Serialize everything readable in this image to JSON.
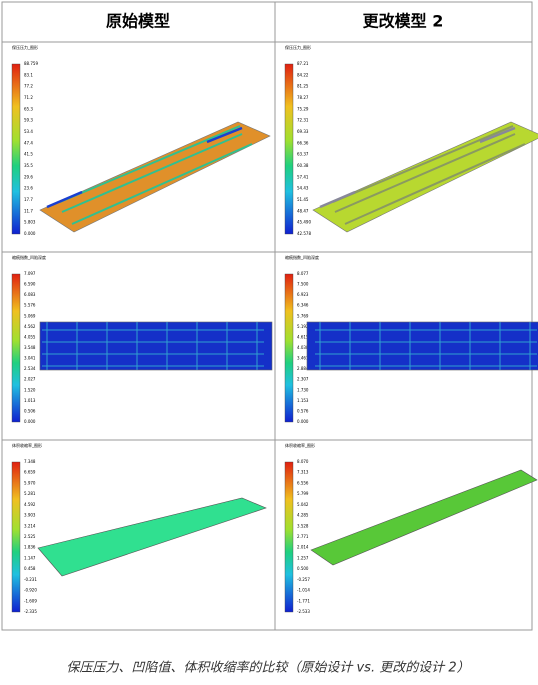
{
  "table": {
    "headers": [
      "原始模型",
      "更改模型 2"
    ],
    "rows": [
      [
        {
          "title": "保压压力_图形",
          "legend": [
            "88.759",
            "83.1",
            "77.2",
            "71.2",
            "65.3",
            "59.3",
            "53.4",
            "47.4",
            "41.5",
            "35.5",
            "29.6",
            "23.6",
            "17.7",
            "11.7",
            "5.803",
            "0.000"
          ]
        },
        {
          "title": "保压压力_图形",
          "legend": [
            "87.21",
            "84.22",
            "81.25",
            "78.27",
            "75.29",
            "72.31",
            "69.33",
            "66.36",
            "63.37",
            "60.38",
            "57.41",
            "54.43",
            "51.45",
            "48.47",
            "45.490",
            "42.578"
          ]
        }
      ],
      [
        {
          "title": "缩痕指数_凹陷深度",
          "legend": [
            "7.097",
            "6.590",
            "6.083",
            "5.576",
            "5.069",
            "4.562",
            "4.055",
            "3.548",
            "3.041",
            "2.534",
            "2.027",
            "1.520",
            "1.013",
            "0.506",
            "0.000"
          ]
        },
        {
          "title": "缩痕指数_凹陷深度",
          "legend": [
            "8.077",
            "7.500",
            "6.923",
            "6.346",
            "5.769",
            "5.192",
            "4.615",
            "4.038",
            "3.461",
            "2.884",
            "2.307",
            "1.730",
            "1.153",
            "0.576",
            "0.000"
          ]
        }
      ],
      [
        {
          "title": "体积收缩率_图形",
          "legend": [
            "7.348",
            "6.659",
            "5.970",
            "5.281",
            "4.592",
            "3.903",
            "3.214",
            "2.525",
            "1.836",
            "1.147",
            "0.458",
            "-0.231",
            "-0.920",
            "-1.609",
            "-2.335"
          ]
        },
        {
          "title": "体积收缩率_图形",
          "legend": [
            "8.070",
            "7.313",
            "6.556",
            "5.799",
            "5.042",
            "4.285",
            "3.528",
            "2.771",
            "2.014",
            "1.257",
            "0.500",
            "-0.257",
            "-1.014",
            "-1.771",
            "-2.533"
          ]
        }
      ]
    ]
  },
  "caption": "保压压力、凹陷值、体积收缩率的比较（原始设计 vs. 更改的设计 2）"
}
